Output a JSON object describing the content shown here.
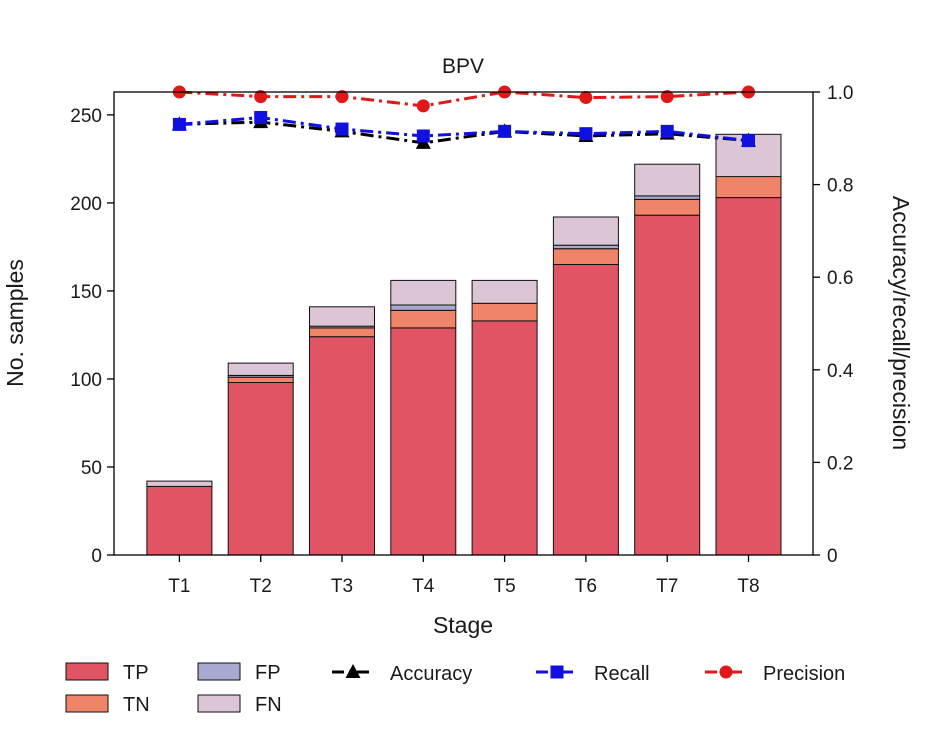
{
  "chart_data": {
    "type": "bar",
    "stacked": true,
    "title": "BPV",
    "xlabel": "Stage",
    "ylabel": "No. samples",
    "y2label": "Accuracy/recall/precision",
    "categories": [
      "T1",
      "T2",
      "T3",
      "T4",
      "T5",
      "T6",
      "T7",
      "T8"
    ],
    "ylim": [
      0,
      263
    ],
    "y2lim": [
      0,
      1.0
    ],
    "yticks": [
      "0",
      "50",
      "100",
      "150",
      "200",
      "250"
    ],
    "y2ticks": [
      "0",
      "0.2",
      "0.4",
      "0.6",
      "0.8",
      "1.0"
    ],
    "series": [
      {
        "name": "TP",
        "color": "#e05464",
        "values": [
          39,
          98,
          124,
          129,
          133,
          165,
          193,
          203
        ]
      },
      {
        "name": "TN",
        "color": "#f08468",
        "values": [
          0,
          3,
          5,
          10,
          10,
          9,
          9,
          12
        ]
      },
      {
        "name": "FP",
        "color": "#a8a8d0",
        "values": [
          0,
          1,
          1,
          3,
          0,
          2,
          2,
          0
        ]
      },
      {
        "name": "FN",
        "color": "#dcc6d6",
        "values": [
          3,
          7,
          11,
          14,
          13,
          16,
          18,
          24
        ]
      }
    ],
    "lines": [
      {
        "name": "Accuracy",
        "color": "#000000",
        "marker": "triangle",
        "values": [
          0.93,
          0.935,
          0.915,
          0.89,
          0.915,
          0.905,
          0.91,
          0.895
        ]
      },
      {
        "name": "Recall",
        "color": "#1010e0",
        "marker": "square",
        "values": [
          0.93,
          0.945,
          0.92,
          0.905,
          0.915,
          0.91,
          0.915,
          0.895
        ]
      },
      {
        "name": "Precision",
        "color": "#e01818",
        "marker": "circle",
        "values": [
          1.0,
          0.99,
          0.99,
          0.97,
          1.0,
          0.988,
          0.99,
          1.0
        ]
      }
    ],
    "legend": [
      "TP",
      "TN",
      "FP",
      "FN",
      "Accuracy",
      "Recall",
      "Precision"
    ],
    "legend_position": "bottom"
  }
}
